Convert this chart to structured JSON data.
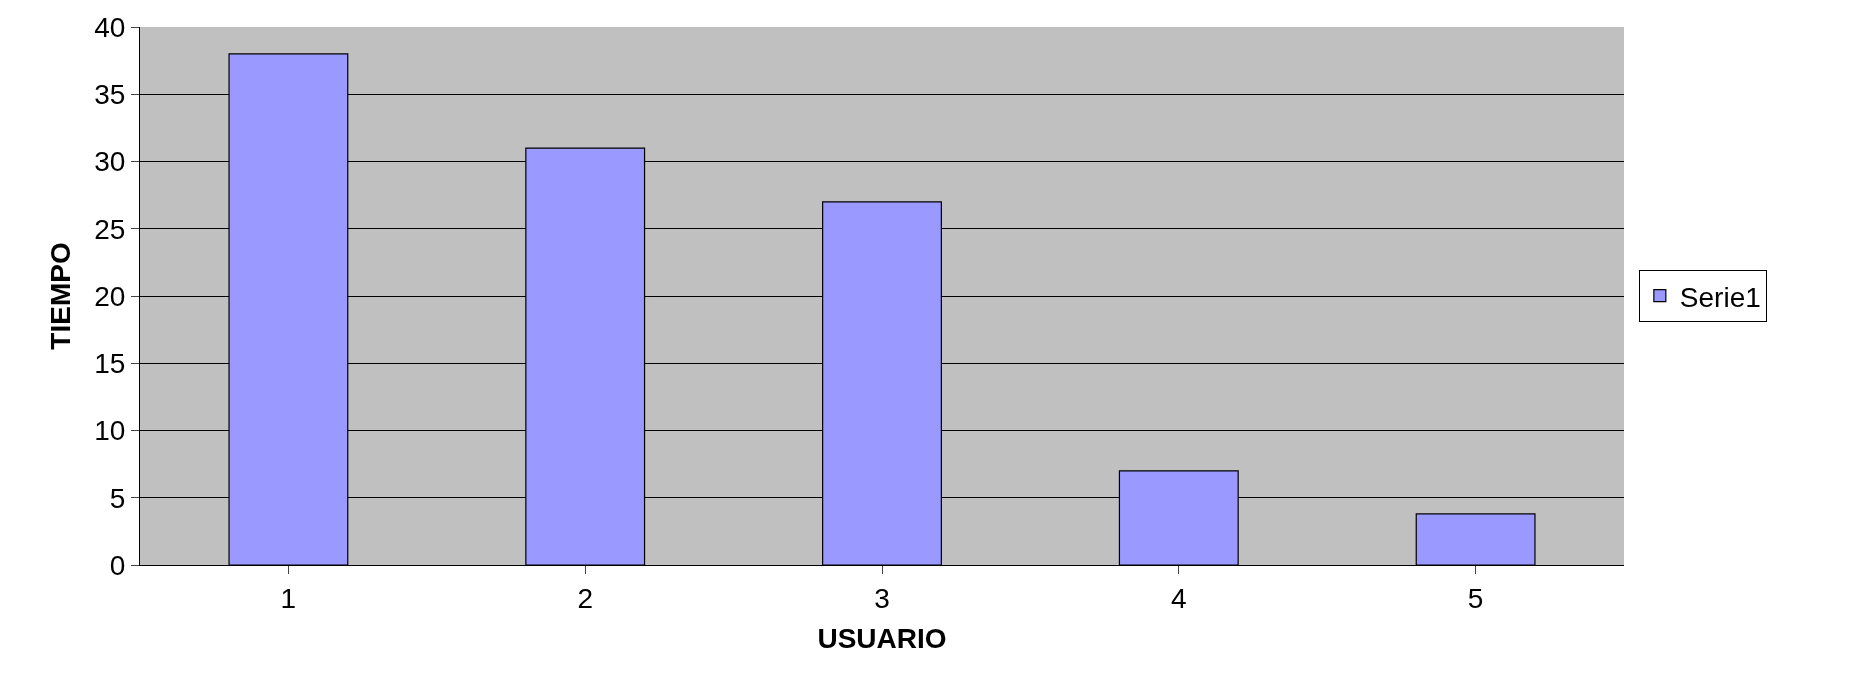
{
  "chart_data": {
    "type": "bar",
    "xlabel": "USUARIO",
    "ylabel": "TIEMPO",
    "categories": [
      "1",
      "2",
      "3",
      "4",
      "5"
    ],
    "series": [
      {
        "name": "Serie1",
        "color": "#9999ff",
        "values": [
          38,
          31,
          27,
          7,
          3.8
        ]
      }
    ],
    "ylim": [
      0,
      40
    ],
    "yticks": [
      0,
      5,
      10,
      15,
      20,
      25,
      30,
      35,
      40
    ],
    "grid": "y",
    "legend": "right"
  }
}
